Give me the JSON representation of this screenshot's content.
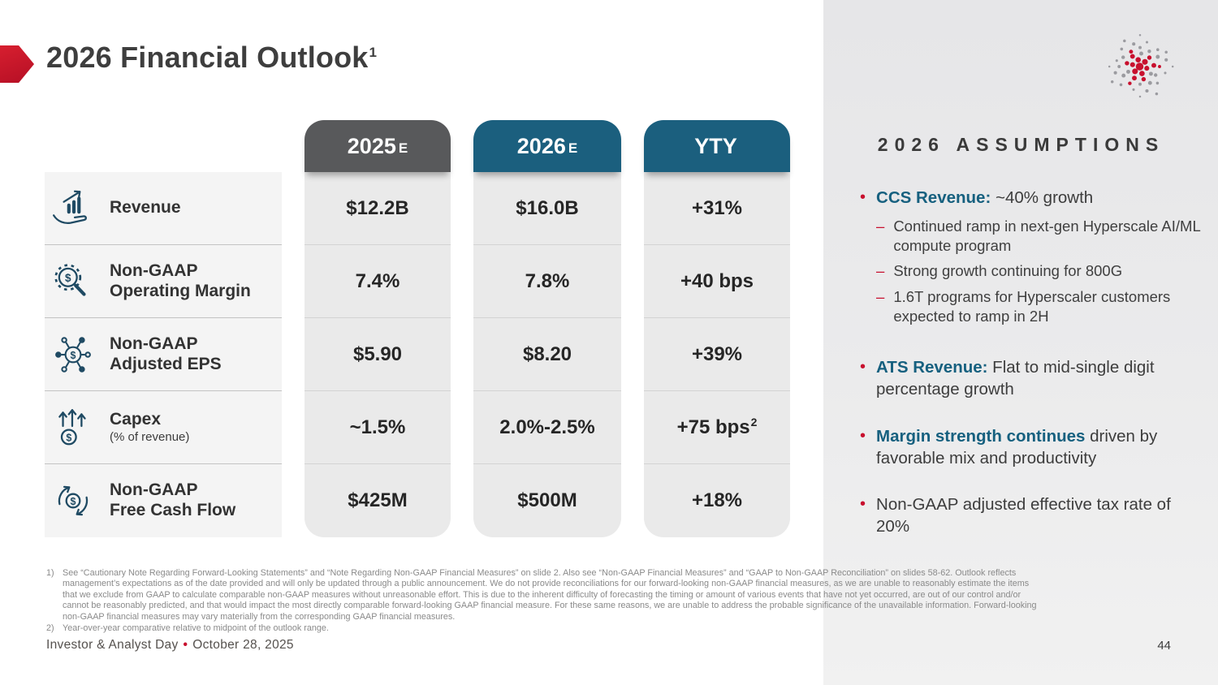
{
  "slide": {
    "title": "2026 Financial Outlook",
    "title_sup": "1",
    "page_number": "44"
  },
  "colors": {
    "accent_red": "#C8102E",
    "teal": "#1B5F7E",
    "header_gray": "#58595B"
  },
  "table": {
    "columns": [
      {
        "label": "2025",
        "suffix": "E",
        "color": "#58595B"
      },
      {
        "label": "2026",
        "suffix": "E",
        "color": "#1B5F7E"
      },
      {
        "label": "YTY",
        "suffix": "",
        "color": "#1B5F7E"
      }
    ],
    "rows": [
      {
        "id": "revenue",
        "icon": "revenue-hand-chart-icon",
        "label_lines": [
          "Revenue"
        ],
        "small_last_line": false,
        "values": [
          "$12.2B",
          "$16.0B",
          "+31%"
        ],
        "value_sups": [
          "",
          "",
          ""
        ]
      },
      {
        "id": "operating-margin",
        "icon": "magnifier-gear-dollar-icon",
        "label_lines": [
          "Non-GAAP",
          "Operating Margin"
        ],
        "small_last_line": false,
        "values": [
          "7.4%",
          "7.8%",
          "+40 bps"
        ],
        "value_sups": [
          "",
          "",
          ""
        ]
      },
      {
        "id": "adjusted-eps",
        "icon": "network-dollar-icon",
        "label_lines": [
          "Non-GAAP",
          "Adjusted EPS"
        ],
        "small_last_line": false,
        "values": [
          "$5.90",
          "$8.20",
          "+39%"
        ],
        "value_sups": [
          "",
          "",
          ""
        ]
      },
      {
        "id": "capex",
        "icon": "capex-arrows-dollar-icon",
        "label_lines": [
          "Capex",
          "(% of revenue)"
        ],
        "small_last_line": true,
        "values": [
          "~1.5%",
          "2.0%-2.5%",
          "+75 bps"
        ],
        "value_sups": [
          "",
          "",
          "2"
        ]
      },
      {
        "id": "free-cash-flow",
        "icon": "cash-cycle-dollar-icon",
        "label_lines": [
          "Non-GAAP",
          "Free Cash Flow"
        ],
        "small_last_line": false,
        "values": [
          "$425M",
          "$500M",
          "+18%"
        ],
        "value_sups": [
          "",
          "",
          ""
        ]
      }
    ]
  },
  "assumptions": {
    "heading": "2026 ASSUMPTIONS",
    "items": [
      {
        "lead": "CCS Revenue:",
        "text": "~40% growth",
        "subs": [
          "Continued ramp in next-gen Hyperscale AI/ML compute program",
          "Strong growth continuing for 800G",
          "1.6T programs for Hyperscaler customers expected to ramp in 2H"
        ]
      },
      {
        "lead": "ATS Revenue:",
        "text": "Flat to mid-single digit percentage growth",
        "subs": []
      },
      {
        "lead": "Margin strength continues",
        "text": "driven by favorable mix and productivity",
        "subs": []
      },
      {
        "lead": "",
        "text": "Non-GAAP adjusted effective tax rate of 20%",
        "subs": []
      }
    ]
  },
  "footnotes": [
    {
      "num": "1)",
      "text": "See “Cautionary Note Regarding Forward-Looking Statements” and “Note Regarding Non-GAAP Financial Measures” on slide 2. Also see “Non-GAAP Financial Measures” and “GAAP to Non-GAAP Reconciliation” on slides 58-62. Outlook reflects management’s expectations as of the date provided and will only be updated through a public announcement. We do not provide reconciliations for our forward-looking non-GAAP financial measures, as we are unable to reasonably estimate the items that we exclude from GAAP to calculate comparable non-GAAP measures without unreasonable effort. This is due to the inherent difficulty of forecasting the timing or amount of various events that have not yet occurred, are out of our control and/or cannot be reasonably predicted, and that would impact the most directly comparable forward-looking GAAP financial measure. For these same reasons, we are unable to address the probable significance of the unavailable information. Forward-looking non-GAAP financial measures may vary materially from the corresponding GAAP financial measures."
    },
    {
      "num": "2)",
      "text": "Year-over-year comparative relative to midpoint of the outlook range."
    }
  ],
  "footer": {
    "event_name": "Investor & Analyst Day",
    "bullet": "•",
    "date": "October 28, 2025"
  }
}
